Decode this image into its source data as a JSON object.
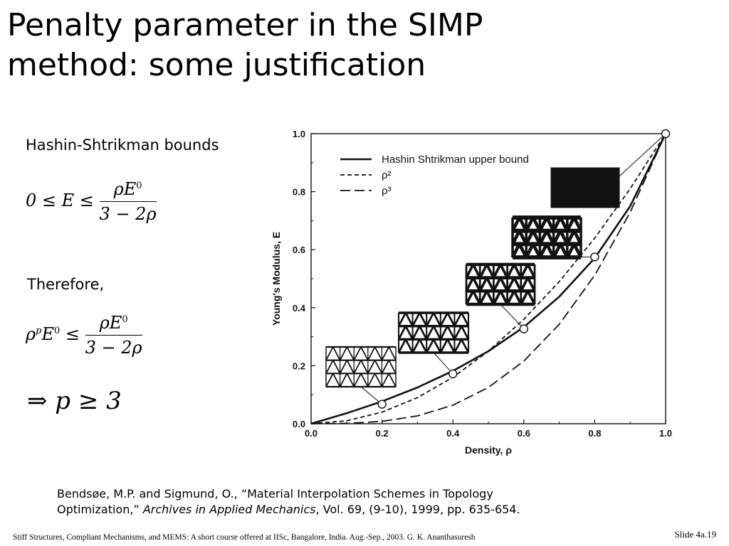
{
  "slide": {
    "title_line1": "Penalty parameter in the SIMP",
    "title_line2": "method: some justification",
    "bounds_heading": "Hashin-Shtrikman bounds",
    "therefore": "Therefore,",
    "reference_line1": "Bendsøe, M.P. and Sigmund, O., “Material Interpolation Schemes in Topology",
    "reference_line2_plain": "Optimization,” ",
    "reference_line2_italic": "Archives in Applied Mechanics",
    "reference_line2_tail": ", Vol. 69, (9-10), 1999, pp. 635-654.",
    "footer": "Stiff Structures, Compliant Mechanisms, and MEMS: A short course offered at IISc, Bangalore, India. Aug.-Sep., 2003. G. K. Ananthasuresh",
    "slide_number": "Slide 4a.19"
  },
  "equations": {
    "eq1_left": "0 ≤ E ≤",
    "eq1_num": "ρE",
    "eq1_num_sup": "0",
    "eq1_den": "3 − 2ρ",
    "eq2_rho": "ρ",
    "eq2_p": "p",
    "eq2_E": "E",
    "eq2_sup0": "0",
    "eq2_le": "≤",
    "eq2_num": "ρE",
    "eq2_num_sup": "0",
    "eq2_den": "3 − 2ρ",
    "eq3": "⇒ p ≥ 3"
  },
  "chart_data": {
    "type": "line",
    "xlabel": "Density, ρ",
    "ylabel": "Young's Modulus, E",
    "xlim": [
      0,
      1
    ],
    "ylim": [
      0,
      1
    ],
    "x_ticks": [
      "0.0",
      "0.2",
      "0.4",
      "0.6",
      "0.8",
      "1.0"
    ],
    "y_ticks": [
      "0.0",
      "0.2",
      "0.4",
      "0.6",
      "0.8",
      "1.0"
    ],
    "legend_position": "top-left",
    "x": [
      0.0,
      0.1,
      0.2,
      0.3,
      0.4,
      0.5,
      0.6,
      0.7,
      0.8,
      0.9,
      1.0
    ],
    "series": [
      {
        "name": "Hashin Shtrikman upper bound",
        "style": "solid",
        "values": [
          0.0,
          0.036,
          0.077,
          0.125,
          0.182,
          0.25,
          0.333,
          0.438,
          0.571,
          0.75,
          1.0
        ]
      },
      {
        "name": "ρ²",
        "style": "short-dash",
        "values": [
          0.0,
          0.01,
          0.04,
          0.09,
          0.16,
          0.25,
          0.36,
          0.49,
          0.64,
          0.81,
          1.0
        ]
      },
      {
        "name": "ρ³",
        "style": "long-dash",
        "values": [
          0.0,
          0.001,
          0.008,
          0.027,
          0.064,
          0.125,
          0.216,
          0.343,
          0.512,
          0.729,
          1.0
        ]
      }
    ],
    "markers": [
      {
        "x": 0.2,
        "y": 0.067
      },
      {
        "x": 0.4,
        "y": 0.172
      },
      {
        "x": 0.6,
        "y": 0.327
      },
      {
        "x": 0.8,
        "y": 0.575
      },
      {
        "x": 1.0,
        "y": 1.0
      }
    ],
    "microstructure_insets": [
      {
        "density": 0.2
      },
      {
        "density": 0.4
      },
      {
        "density": 0.6
      },
      {
        "density": 0.8
      },
      {
        "density": 1.0
      }
    ]
  }
}
